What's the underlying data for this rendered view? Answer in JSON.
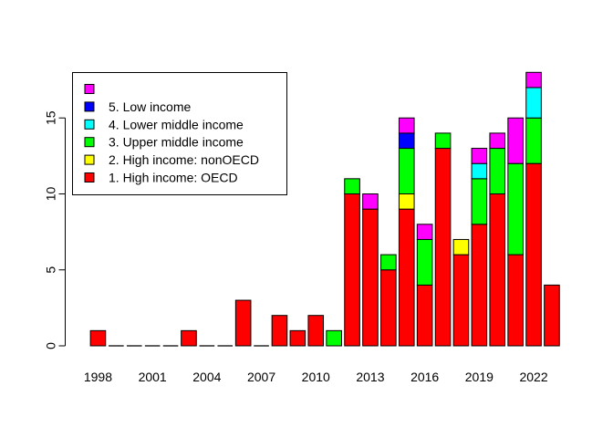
{
  "chart_data": {
    "type": "bar",
    "stacked": true,
    "categories": [
      "1998",
      "1999",
      "2000",
      "2001",
      "2002",
      "2003",
      "2004",
      "2005",
      "2006",
      "2007",
      "2008",
      "2009",
      "2010",
      "2011",
      "2012",
      "2013",
      "2014",
      "2015",
      "2016",
      "2017",
      "2018",
      "2019",
      "2020",
      "2021",
      "2022",
      "2023"
    ],
    "x_tick_labels": [
      "1998",
      "2001",
      "2004",
      "2007",
      "2010",
      "2013",
      "2016",
      "2019",
      "2022"
    ],
    "y_ticks": [
      0,
      5,
      10,
      15
    ],
    "ylim": [
      0,
      18
    ],
    "series": [
      {
        "name": "1. High income: OECD",
        "color": "#ff0000",
        "values": [
          1,
          0,
          0,
          0,
          0,
          1,
          0,
          0,
          3,
          0,
          2,
          1,
          2,
          0,
          10,
          9,
          5,
          9,
          4,
          13,
          6,
          8,
          10,
          6,
          12,
          4
        ]
      },
      {
        "name": "2. High income: nonOECD",
        "color": "#ffff00",
        "values": [
          0,
          0,
          0,
          0,
          0,
          0,
          0,
          0,
          0,
          0,
          0,
          0,
          0,
          0,
          0,
          0,
          0,
          1,
          0,
          0,
          1,
          0,
          0,
          0,
          0,
          0
        ]
      },
      {
        "name": "3. Upper middle income",
        "color": "#00ff00",
        "values": [
          0,
          0,
          0,
          0,
          0,
          0,
          0,
          0,
          0,
          0,
          0,
          0,
          0,
          1,
          1,
          0,
          1,
          3,
          3,
          1,
          0,
          3,
          3,
          6,
          3,
          0
        ]
      },
      {
        "name": "4. Lower middle income",
        "color": "#00ffff",
        "values": [
          0,
          0,
          0,
          0,
          0,
          0,
          0,
          0,
          0,
          0,
          0,
          0,
          0,
          0,
          0,
          0,
          0,
          0,
          0,
          0,
          0,
          1,
          0,
          0,
          2,
          0
        ]
      },
      {
        "name": "5. Low income",
        "color": "#0000ff",
        "values": [
          0,
          0,
          0,
          0,
          0,
          0,
          0,
          0,
          0,
          0,
          0,
          0,
          0,
          0,
          0,
          0,
          0,
          1,
          0,
          0,
          0,
          0,
          0,
          0,
          0,
          0
        ]
      },
      {
        "name": "",
        "color": "#ff00ff",
        "values": [
          0,
          0,
          0,
          0,
          0,
          0,
          0,
          0,
          0,
          0,
          0,
          0,
          0,
          0,
          0,
          1,
          0,
          1,
          1,
          0,
          0,
          1,
          1,
          3,
          1,
          0
        ]
      }
    ],
    "legend": {
      "placement": "top-left",
      "entries": [
        "",
        "5. Low income",
        "4. Lower middle income",
        "3. Upper middle income",
        "2. High income: nonOECD",
        "1. High income: OECD"
      ]
    },
    "grid": false
  }
}
